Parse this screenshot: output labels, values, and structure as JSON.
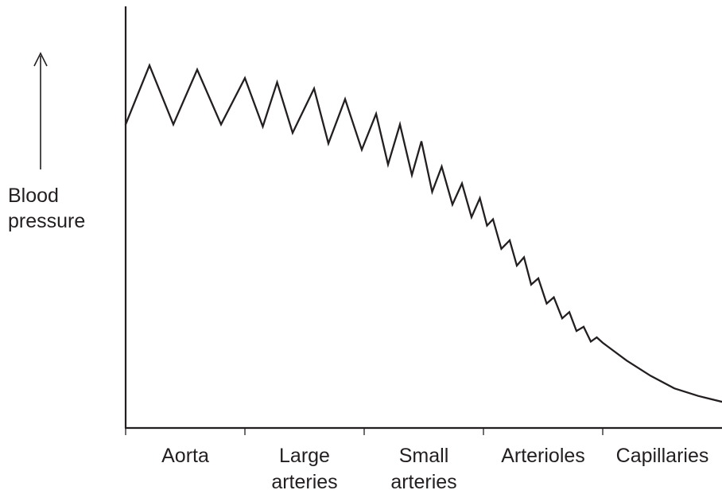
{
  "chart_data": {
    "type": "line",
    "ylabel": [
      "Blood",
      "pressure"
    ],
    "categories": [
      [
        "Aorta"
      ],
      [
        "Large",
        "arteries"
      ],
      [
        "Small",
        "arteries"
      ],
      [
        "Arterioles"
      ],
      [
        "Capillaries"
      ]
    ],
    "y_axis_arrow": "up",
    "ticks_shown": false,
    "grid": false,
    "xlim": [
      0,
      5
    ],
    "ylim": [
      0,
      100
    ],
    "series": [
      {
        "values": [
          [
            0.0,
            72
          ],
          [
            0.2,
            86
          ],
          [
            0.4,
            72
          ],
          [
            0.6,
            85
          ],
          [
            0.8,
            72
          ],
          [
            1.0,
            83
          ],
          [
            1.15,
            71.5
          ],
          [
            1.27,
            82
          ],
          [
            1.4,
            70
          ],
          [
            1.58,
            80.5
          ],
          [
            1.7,
            67.5
          ],
          [
            1.84,
            78
          ],
          [
            1.98,
            66
          ],
          [
            2.1,
            74.5
          ],
          [
            2.2,
            62.5
          ],
          [
            2.3,
            72
          ],
          [
            2.4,
            60
          ],
          [
            2.48,
            68
          ],
          [
            2.57,
            56
          ],
          [
            2.65,
            62
          ],
          [
            2.74,
            53
          ],
          [
            2.82,
            58
          ],
          [
            2.9,
            50
          ],
          [
            2.97,
            54.5
          ],
          [
            3.03,
            48
          ],
          [
            3.08,
            49.5
          ],
          [
            3.15,
            42.5
          ],
          [
            3.22,
            44.5
          ],
          [
            3.28,
            38.5
          ],
          [
            3.34,
            40.5
          ],
          [
            3.4,
            34
          ],
          [
            3.46,
            35.5
          ],
          [
            3.53,
            29.5
          ],
          [
            3.59,
            31
          ],
          [
            3.66,
            26
          ],
          [
            3.72,
            27.5
          ],
          [
            3.78,
            23
          ],
          [
            3.84,
            24
          ],
          [
            3.9,
            20.5
          ],
          [
            3.95,
            21.5
          ],
          [
            4.0,
            20.2
          ],
          [
            4.2,
            16.0
          ],
          [
            4.4,
            12.4
          ],
          [
            4.6,
            9.4
          ],
          [
            4.8,
            7.6
          ],
          [
            5.0,
            6.2
          ]
        ]
      }
    ]
  }
}
